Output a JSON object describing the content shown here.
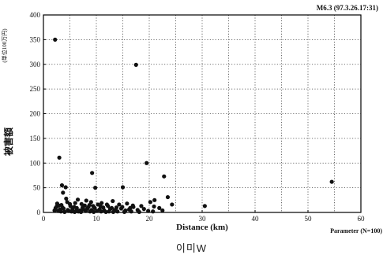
{
  "chart_data": {
    "type": "scatter",
    "title": "M6.3 (97.3.26.17:31)",
    "xlabel": "Distance (km)",
    "ylabel": "被害額",
    "yunit": "(単位100万円)",
    "footnote": "Parameter (N=100)",
    "xlim": [
      0,
      60
    ],
    "ylim": [
      0,
      400
    ],
    "xticks": [
      0,
      10,
      20,
      30,
      40,
      50,
      60
    ],
    "yticks": [
      0,
      50,
      100,
      150,
      200,
      250,
      300,
      350,
      400
    ],
    "grid": true,
    "points": [
      {
        "x": 2.2,
        "y": 350
      },
      {
        "x": 17.5,
        "y": 299
      },
      {
        "x": 3.0,
        "y": 111
      },
      {
        "x": 19.5,
        "y": 100
      },
      {
        "x": 9.2,
        "y": 80
      },
      {
        "x": 22.8,
        "y": 73
      },
      {
        "x": 54.5,
        "y": 62
      },
      {
        "x": 3.5,
        "y": 55
      },
      {
        "x": 4.2,
        "y": 51
      },
      {
        "x": 9.8,
        "y": 50
      },
      {
        "x": 15.0,
        "y": 51
      },
      {
        "x": 23.5,
        "y": 31
      },
      {
        "x": 21.0,
        "y": 25
      },
      {
        "x": 2.6,
        "y": 18
      },
      {
        "x": 3.4,
        "y": 15
      },
      {
        "x": 4.5,
        "y": 21
      },
      {
        "x": 5.1,
        "y": 13
      },
      {
        "x": 6.0,
        "y": 19
      },
      {
        "x": 7.2,
        "y": 17
      },
      {
        "x": 7.8,
        "y": 14
      },
      {
        "x": 8.5,
        "y": 11
      },
      {
        "x": 9.0,
        "y": 21
      },
      {
        "x": 10.3,
        "y": 16
      },
      {
        "x": 11.0,
        "y": 19
      },
      {
        "x": 12.2,
        "y": 13
      },
      {
        "x": 13.1,
        "y": 23
      },
      {
        "x": 14.3,
        "y": 16
      },
      {
        "x": 15.8,
        "y": 18
      },
      {
        "x": 17.0,
        "y": 11
      },
      {
        "x": 18.5,
        "y": 13
      },
      {
        "x": 20.2,
        "y": 21
      },
      {
        "x": 21.9,
        "y": 9
      },
      {
        "x": 24.3,
        "y": 16
      },
      {
        "x": 30.5,
        "y": 13
      },
      {
        "x": 2.3,
        "y": 9
      },
      {
        "x": 3.1,
        "y": 6
      },
      {
        "x": 3.8,
        "y": 8
      },
      {
        "x": 4.6,
        "y": 5
      },
      {
        "x": 5.5,
        "y": 7
      },
      {
        "x": 6.3,
        "y": 9
      },
      {
        "x": 6.9,
        "y": 4
      },
      {
        "x": 7.6,
        "y": 6
      },
      {
        "x": 8.3,
        "y": 8
      },
      {
        "x": 9.1,
        "y": 5
      },
      {
        "x": 9.7,
        "y": 9
      },
      {
        "x": 10.6,
        "y": 6
      },
      {
        "x": 11.5,
        "y": 4
      },
      {
        "x": 12.6,
        "y": 7
      },
      {
        "x": 13.5,
        "y": 5
      },
      {
        "x": 14.7,
        "y": 8
      },
      {
        "x": 16.2,
        "y": 6
      },
      {
        "x": 17.8,
        "y": 5
      },
      {
        "x": 19.0,
        "y": 7
      },
      {
        "x": 22.5,
        "y": 4
      },
      {
        "x": 2.8,
        "y": 3
      },
      {
        "x": 3.3,
        "y": 2
      },
      {
        "x": 4.0,
        "y": 1
      },
      {
        "x": 4.8,
        "y": 3
      },
      {
        "x": 5.3,
        "y": 2
      },
      {
        "x": 5.9,
        "y": 1
      },
      {
        "x": 6.6,
        "y": 2
      },
      {
        "x": 7.1,
        "y": 1
      },
      {
        "x": 8.0,
        "y": 3
      },
      {
        "x": 8.8,
        "y": 2
      },
      {
        "x": 9.5,
        "y": 1
      },
      {
        "x": 10.1,
        "y": 3
      },
      {
        "x": 10.9,
        "y": 2
      },
      {
        "x": 11.8,
        "y": 1
      },
      {
        "x": 12.4,
        "y": 2
      },
      {
        "x": 13.2,
        "y": 1
      },
      {
        "x": 14.0,
        "y": 2
      },
      {
        "x": 15.3,
        "y": 1
      },
      {
        "x": 16.6,
        "y": 2
      },
      {
        "x": 18.1,
        "y": 1
      },
      {
        "x": 20.7,
        "y": 2
      },
      {
        "x": 2.5,
        "y": 12
      },
      {
        "x": 5.8,
        "y": 11
      },
      {
        "x": 8.1,
        "y": 24
      },
      {
        "x": 11.3,
        "y": 10
      },
      {
        "x": 12.9,
        "y": 9
      },
      {
        "x": 6.5,
        "y": 26
      },
      {
        "x": 4.3,
        "y": 28
      },
      {
        "x": 3.7,
        "y": 40
      },
      {
        "x": 16.9,
        "y": 14
      },
      {
        "x": 2.1,
        "y": 4
      },
      {
        "x": 3.6,
        "y": 10
      },
      {
        "x": 7.4,
        "y": 10
      },
      {
        "x": 9.4,
        "y": 13
      },
      {
        "x": 10.8,
        "y": 12
      },
      {
        "x": 14.9,
        "y": 11
      },
      {
        "x": 19.8,
        "y": 3
      },
      {
        "x": 2.9,
        "y": 14
      },
      {
        "x": 5.0,
        "y": 17
      },
      {
        "x": 8.7,
        "y": 15
      },
      {
        "x": 12.0,
        "y": 16
      },
      {
        "x": 13.8,
        "y": 10
      },
      {
        "x": 15.5,
        "y": 4
      },
      {
        "x": 16.4,
        "y": 9
      },
      {
        "x": 6.2,
        "y": 3
      },
      {
        "x": 20.9,
        "y": 12
      }
    ]
  },
  "caption": "이미W"
}
